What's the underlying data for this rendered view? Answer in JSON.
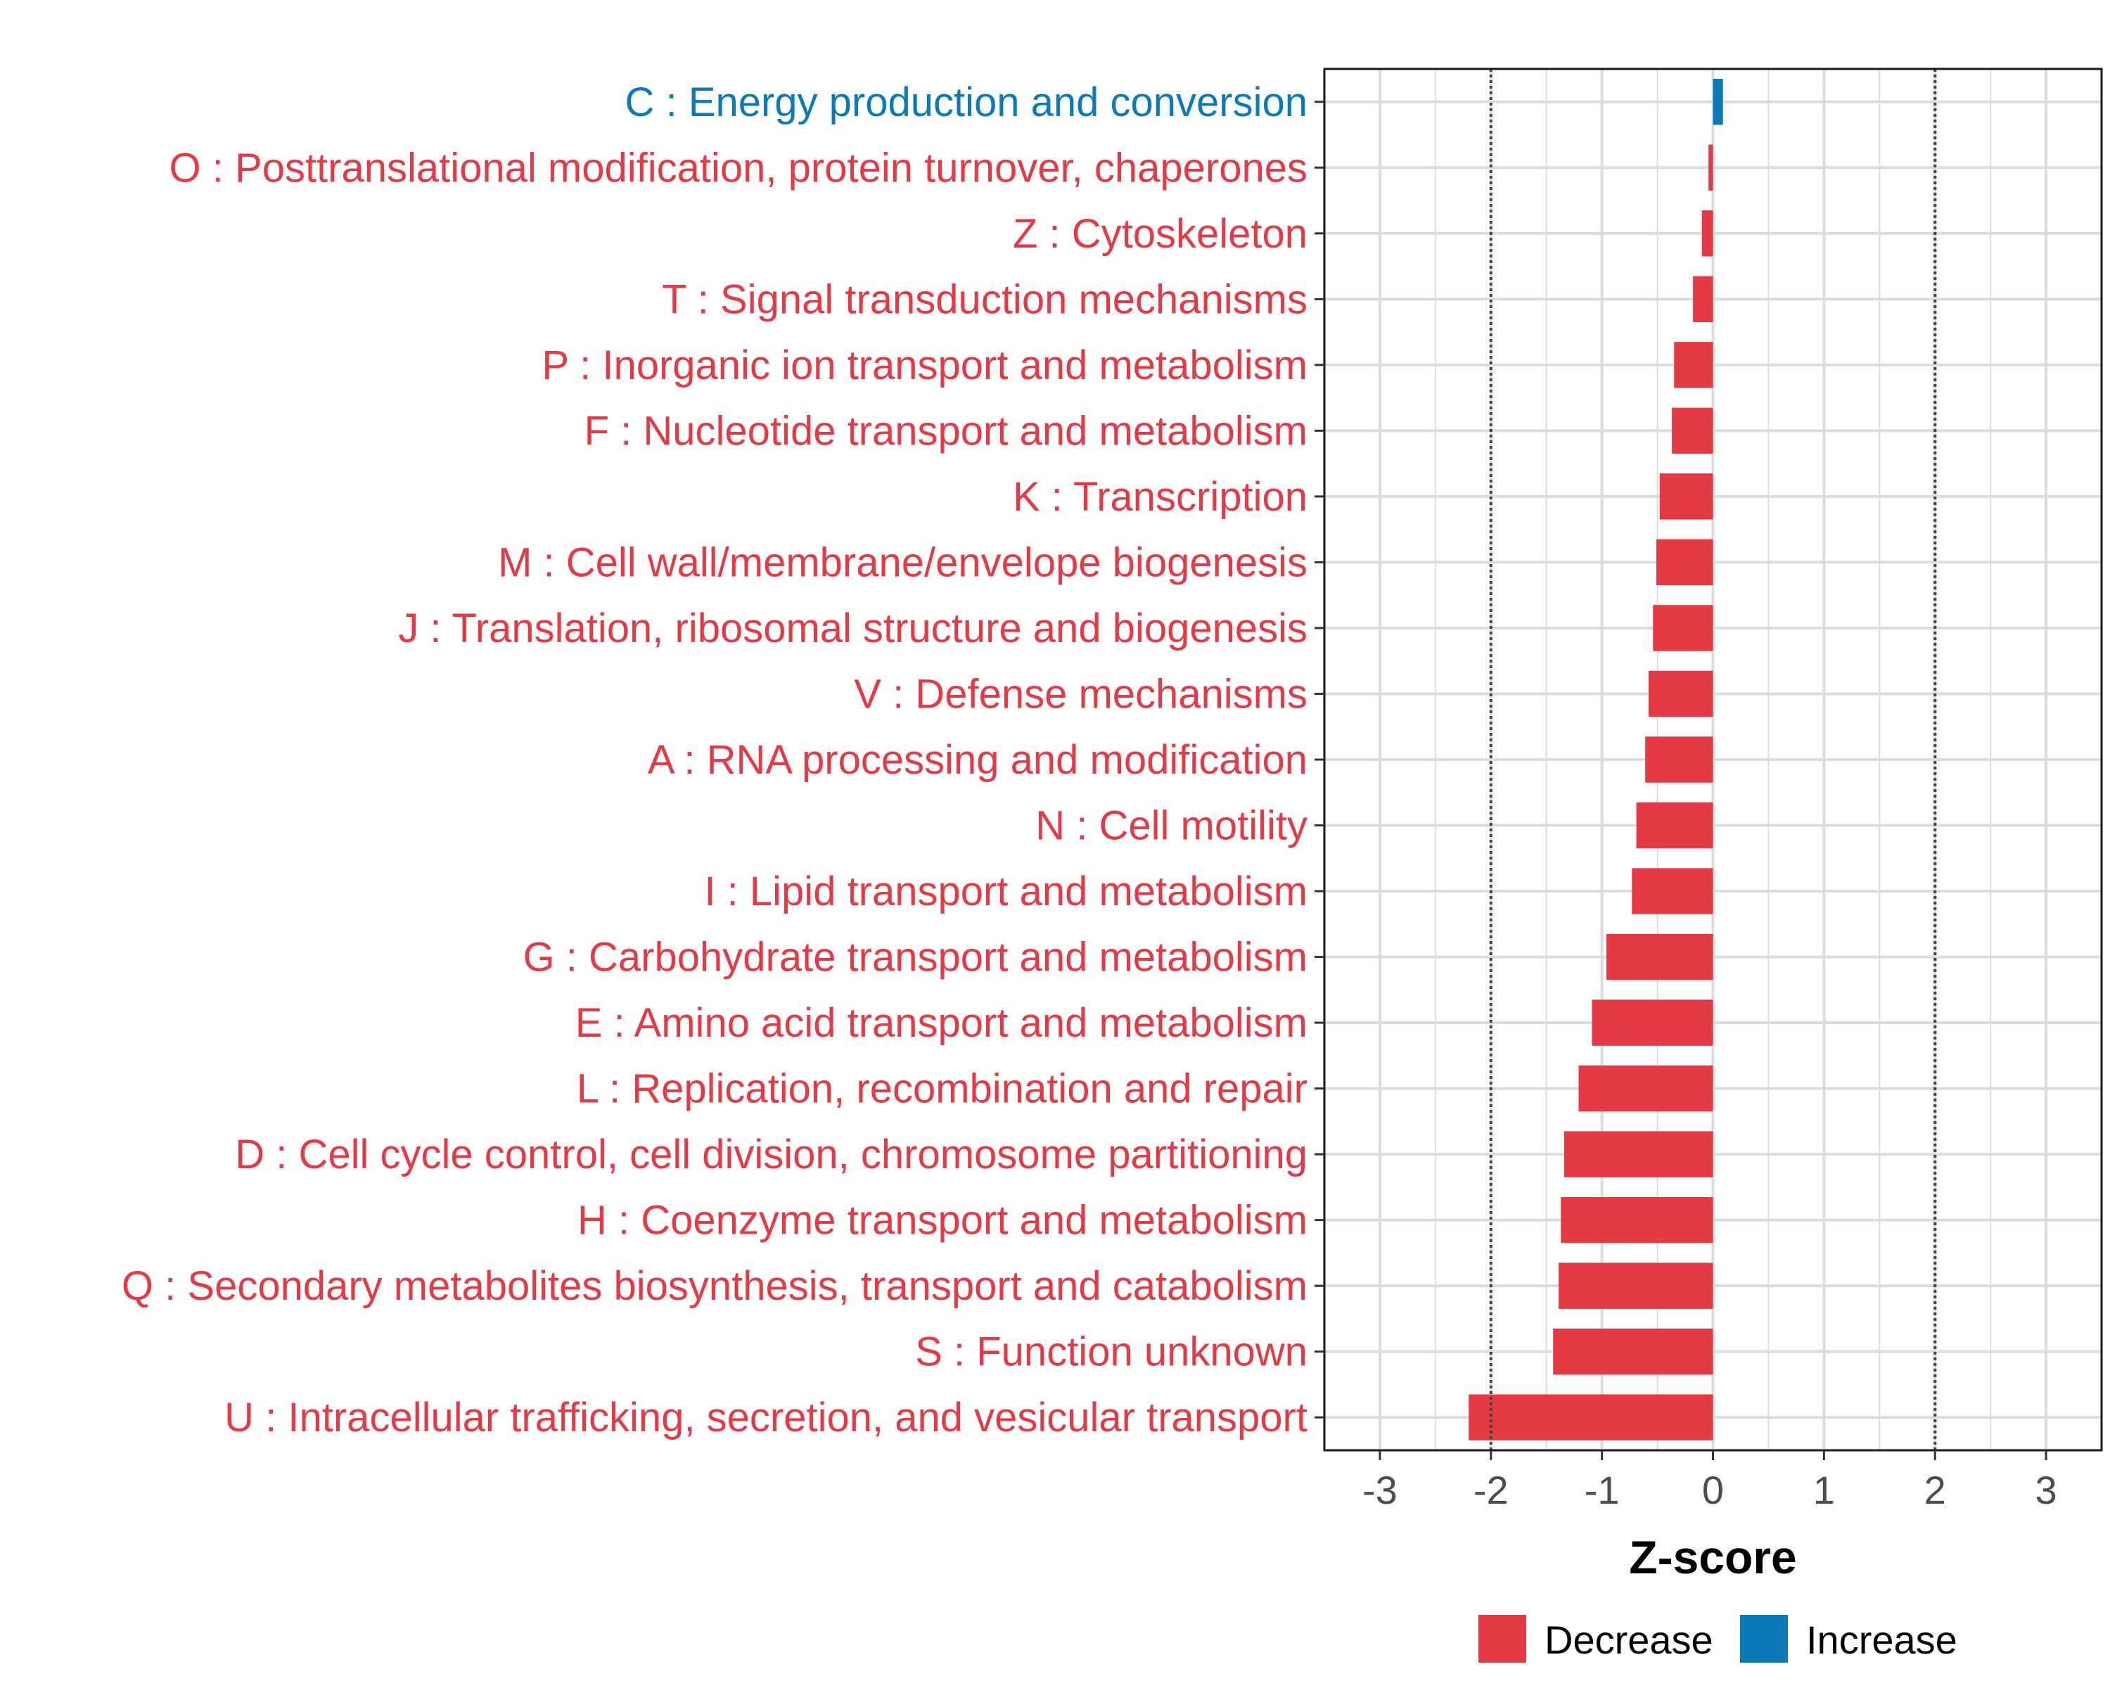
{
  "chart_data": {
    "type": "bar",
    "orientation": "horizontal",
    "title": "",
    "xlabel": "Z-score",
    "ylabel": "",
    "xlim": [
      -3.5,
      3.5
    ],
    "x_ticks": [
      -3,
      -2,
      -1,
      0,
      1,
      2,
      3
    ],
    "x_tick_labels": [
      "-3",
      "-2",
      "-1",
      "0",
      "1",
      "2",
      "3"
    ],
    "reference_lines": [
      -2,
      2
    ],
    "grid": true,
    "legend_position": "bottom",
    "colors": {
      "Decrease": "#e63946",
      "Increase": "#0a7bb8"
    },
    "legend": [
      {
        "label": "Decrease",
        "color": "#e63946"
      },
      {
        "label": "Increase",
        "color": "#0a7bb8"
      }
    ],
    "bars": [
      {
        "label": "C : Energy production and conversion",
        "value": 0.09,
        "direction": "Increase"
      },
      {
        "label": "O : Posttranslational modification, protein turnover, chaperones",
        "value": -0.04,
        "direction": "Decrease"
      },
      {
        "label": "Z : Cytoskeleton",
        "value": -0.1,
        "direction": "Decrease"
      },
      {
        "label": "T : Signal transduction mechanisms",
        "value": -0.18,
        "direction": "Decrease"
      },
      {
        "label": "P : Inorganic ion transport and metabolism",
        "value": -0.35,
        "direction": "Decrease"
      },
      {
        "label": "F : Nucleotide transport and metabolism",
        "value": -0.37,
        "direction": "Decrease"
      },
      {
        "label": "K : Transcription",
        "value": -0.48,
        "direction": "Decrease"
      },
      {
        "label": "M : Cell wall/membrane/envelope biogenesis",
        "value": -0.51,
        "direction": "Decrease"
      },
      {
        "label": "J : Translation, ribosomal structure and biogenesis",
        "value": -0.54,
        "direction": "Decrease"
      },
      {
        "label": "V : Defense mechanisms",
        "value": -0.58,
        "direction": "Decrease"
      },
      {
        "label": "A : RNA processing and modification",
        "value": -0.61,
        "direction": "Decrease"
      },
      {
        "label": "N : Cell motility",
        "value": -0.69,
        "direction": "Decrease"
      },
      {
        "label": "I : Lipid transport and metabolism",
        "value": -0.73,
        "direction": "Decrease"
      },
      {
        "label": "G : Carbohydrate transport and metabolism",
        "value": -0.96,
        "direction": "Decrease"
      },
      {
        "label": "E : Amino acid transport and metabolism",
        "value": -1.09,
        "direction": "Decrease"
      },
      {
        "label": "L : Replication, recombination and repair",
        "value": -1.21,
        "direction": "Decrease"
      },
      {
        "label": "D : Cell cycle control, cell division, chromosome partitioning",
        "value": -1.34,
        "direction": "Decrease"
      },
      {
        "label": "H : Coenzyme transport and metabolism",
        "value": -1.37,
        "direction": "Decrease"
      },
      {
        "label": "Q : Secondary metabolites biosynthesis, transport and catabolism",
        "value": -1.39,
        "direction": "Decrease"
      },
      {
        "label": "S : Function unknown",
        "value": -1.44,
        "direction": "Decrease"
      },
      {
        "label": "U : Intracellular trafficking, secretion, and vesicular transport",
        "value": -2.2,
        "direction": "Decrease"
      }
    ]
  }
}
